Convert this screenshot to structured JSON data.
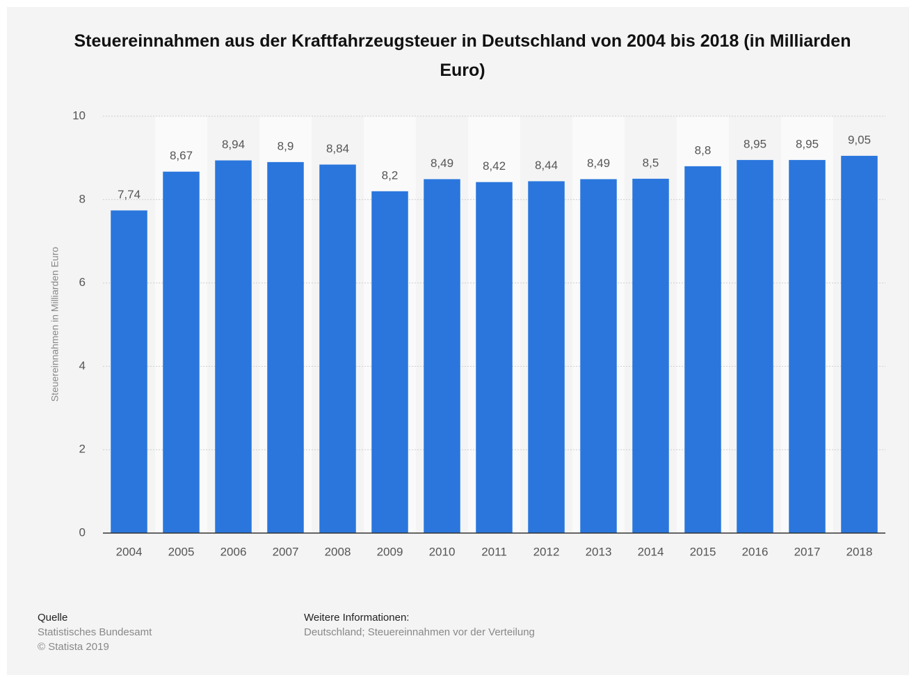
{
  "chart_data": {
    "type": "bar",
    "title": "Steuereinnahmen aus der Kraftfahrzeugsteuer in Deutschland von 2004 bis 2018 (in Milliarden Euro)",
    "y_label": "Steuereinnahmen in Milliarden Euro",
    "categories": [
      "2004",
      "2005",
      "2006",
      "2007",
      "2008",
      "2009",
      "2010",
      "2011",
      "2012",
      "2013",
      "2014",
      "2015",
      "2016",
      "2017",
      "2018"
    ],
    "values": [
      7.74,
      8.67,
      8.94,
      8.9,
      8.84,
      8.2,
      8.49,
      8.42,
      8.44,
      8.49,
      8.5,
      8.8,
      8.95,
      8.95,
      9.05
    ],
    "value_labels": [
      "7,74",
      "8,67",
      "8,94",
      "8,9",
      "8,84",
      "8,2",
      "8,49",
      "8,42",
      "8,44",
      "8,49",
      "8,5",
      "8,8",
      "8,95",
      "8,95",
      "9,05"
    ],
    "color": "#2a76dd",
    "ylim": [
      0,
      10
    ],
    "yticks": [
      0,
      2,
      4,
      6,
      8,
      10
    ],
    "grid": true,
    "source_heading": "Quelle",
    "source": "Statistisches Bundesamt",
    "copyright": "© Statista 2019",
    "info_heading": "Weitere Informationen:",
    "info": "Deutschland; Steuereinnahmen vor der Verteilung"
  }
}
